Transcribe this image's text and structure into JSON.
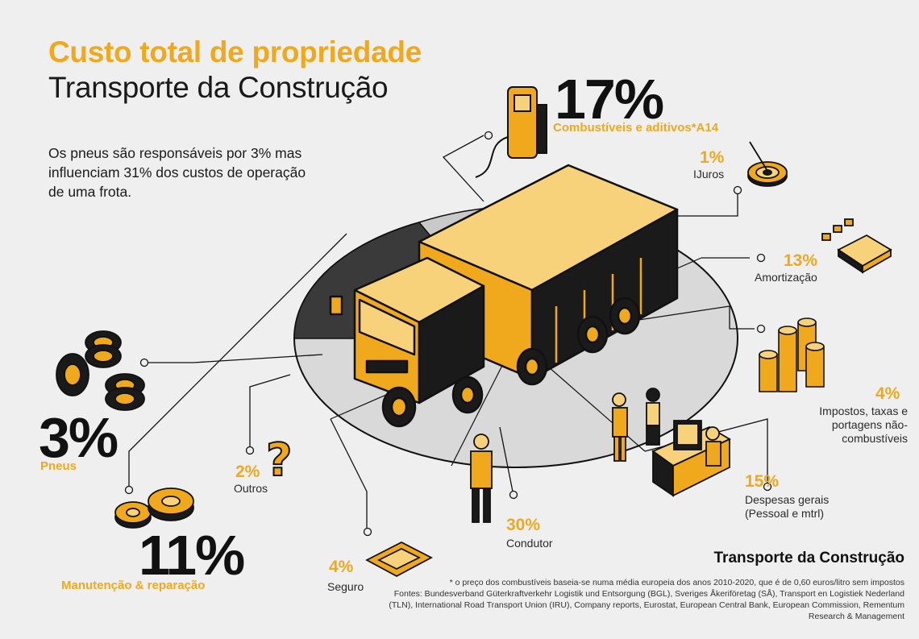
{
  "header": {
    "title": "Custo total de propriedade",
    "subtitle": "Transporte da Construção",
    "intro": "Os pneus são responsáveis por 3% mas influenciam 31% dos custos de operação de uma frota."
  },
  "costs": {
    "fuel": {
      "pct": "17%",
      "label": "Combustíveis e aditivos*A14"
    },
    "interest": {
      "pct": "1%",
      "label": "IJuros"
    },
    "depreciation": {
      "pct": "13%",
      "label": "Amortização"
    },
    "taxes": {
      "pct": "4%",
      "label": "Impostos, taxas e portagens não-combustíveis"
    },
    "overhead": {
      "pct": "15%",
      "label": "Despesas gerais (Pessoal e mtrl)"
    },
    "driver": {
      "pct": "30%",
      "label": "Condutor"
    },
    "insurance": {
      "pct": "4%",
      "label": "Seguro"
    },
    "other": {
      "pct": "2%",
      "label": "Outros"
    },
    "tyres": {
      "pct": "3%",
      "label": "Pneus"
    },
    "maintenance": {
      "pct": "11%",
      "label": "Manutenção & reparação"
    }
  },
  "footer": {
    "title": "Transporte da Construção",
    "note": "* o preço dos combustíveis baseia-se numa média europeia dos anos 2010-2020, que é de 0,60 euros/litro sem impostos",
    "sources": "Fontes: Bundesverband Güterkraftverkehr Logistik und Entsorgung (BGL), Sveriges Åkeriföretag (SÅ), Transport en Logistiek Nederland (TLN), International Road Transport Union (IRU), Company reports, Eurostat, European Central Bank, European Commission, Rementum Research & Management"
  },
  "colors": {
    "accent": "#f0a91c",
    "dark": "#1a1a1a",
    "background": "#efefef"
  },
  "icons": [
    "fuel-pump-icon",
    "target-icon",
    "calculator-icon",
    "coin-stack-icon",
    "office-worker-icon",
    "driver-icon",
    "insurance-document-icon",
    "question-mark-icon",
    "tyres-icon",
    "gears-icon",
    "truck-illustration"
  ]
}
